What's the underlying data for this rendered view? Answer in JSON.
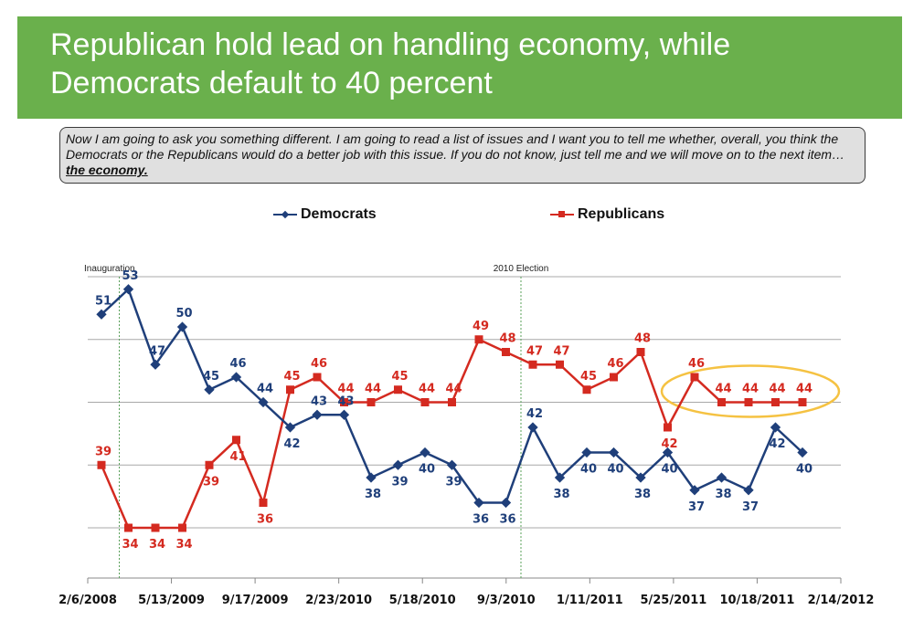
{
  "header": {
    "title_line1": "Republican hold lead on handling economy, while",
    "title_line2": "Democrats default to 40 percent"
  },
  "question": {
    "text": "Now I am going to ask you something different. I am going to read a list of issues and I want you to tell me whether, overall, you think the Democrats or the Republicans would do a better job with this issue. If you do not know, just tell me and we will move on to the next item… ",
    "emphasis": "the economy."
  },
  "colors": {
    "democrats": "#1f3f7a",
    "republicans": "#d42a20",
    "banner": "#6ab04c",
    "highlight": "#f5c242",
    "grid": "#a8a8a8",
    "event_line": "#5aa05a"
  },
  "chart_data": {
    "type": "line",
    "title": "",
    "xlabel": "",
    "ylabel": "",
    "ylim": [
      30,
      54
    ],
    "grid": true,
    "legend_position": "top",
    "x_tick_labels": [
      "2/6/2008",
      "5/13/2009",
      "9/17/2009",
      "2/23/2010",
      "5/18/2010",
      "9/3/2010",
      "1/11/2011",
      "5/25/2011",
      "10/18/2011",
      "2/14/2012"
    ],
    "annotations": [
      {
        "label": "Inauguration",
        "after_point": 1
      },
      {
        "label": "2010 Election",
        "after_point": 16
      }
    ],
    "highlight": {
      "series": "Republicans",
      "point_range": [
        22,
        26
      ]
    },
    "series": [
      {
        "name": "Democrats",
        "values": [
          51,
          53,
          47,
          50,
          45,
          46,
          44,
          42,
          43,
          43,
          38,
          39,
          40,
          39,
          36,
          36,
          42,
          38,
          40,
          40,
          38,
          40,
          37,
          38,
          37,
          42,
          40
        ]
      },
      {
        "name": "Republicans",
        "values": [
          39,
          34,
          34,
          34,
          39,
          41,
          36,
          45,
          46,
          44,
          44,
          45,
          44,
          44,
          49,
          48,
          47,
          47,
          45,
          46,
          48,
          42,
          46,
          44,
          44,
          44,
          44
        ]
      }
    ]
  }
}
